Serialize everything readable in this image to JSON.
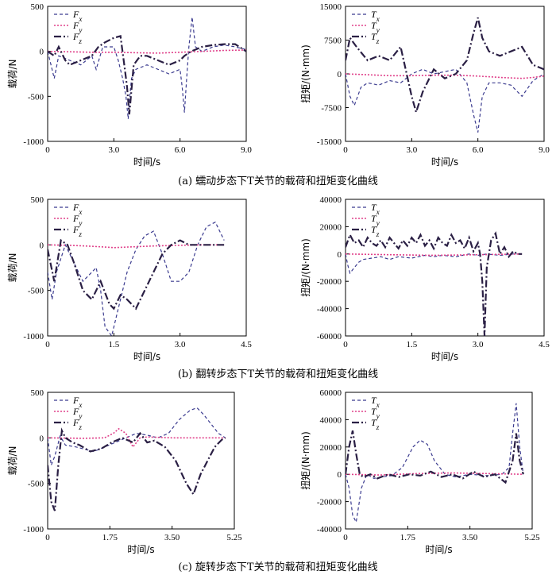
{
  "colors": {
    "x": "#3b3b8f",
    "y": "#e0408a",
    "z": "#2a1f44"
  },
  "captions": [
    "(a)  蠕动步态下T关节的载荷和扭矩变化曲线",
    "(b)  翻转步态下T关节的载荷和扭矩变化曲线",
    "(c)  旋转步态下T关节的载荷和扭矩变化曲线"
  ],
  "chart_data": [
    {
      "type": "line",
      "id": "a-load",
      "xlabel": "时间/s",
      "ylabel": "载荷/N",
      "xlim": [
        0,
        9
      ],
      "ylim": [
        -1000,
        500
      ],
      "xticks": [
        "0",
        "3.0",
        "6.0",
        "9.0"
      ],
      "yticks": [
        "500",
        "0",
        "-500",
        "-1000"
      ],
      "legend": [
        "Fx",
        "Fy",
        "Fz"
      ],
      "series": [
        {
          "name": "Fx",
          "x": [
            0,
            0.15,
            0.3,
            0.5,
            1,
            1.5,
            2,
            2.2,
            2.5,
            3,
            3.2,
            3.4,
            3.55,
            3.65,
            3.7,
            3.8,
            4.0,
            4.5,
            5,
            5.5,
            6.0,
            6.1,
            6.2,
            6.3,
            6.4,
            6.55,
            6.7,
            7,
            7.5,
            8,
            8.5,
            9
          ],
          "y": [
            0,
            -150,
            -300,
            -50,
            -100,
            -150,
            -50,
            -200,
            50,
            50,
            -100,
            -300,
            -500,
            -750,
            -550,
            -300,
            -200,
            -150,
            -200,
            -250,
            -200,
            -400,
            -680,
            -300,
            50,
            380,
            50,
            0,
            50,
            70,
            50,
            20
          ]
        },
        {
          "name": "Fy",
          "x": [
            0,
            1,
            2,
            3,
            4,
            5,
            6,
            7,
            8,
            9
          ],
          "y": [
            0,
            -5,
            -10,
            -10,
            -15,
            -20,
            -10,
            0,
            10,
            15
          ]
        },
        {
          "name": "Fz",
          "x": [
            0,
            0.3,
            0.5,
            0.8,
            1,
            1.5,
            2,
            2.3,
            2.6,
            3,
            3.3,
            3.5,
            3.6,
            3.7,
            3.9,
            4.2,
            4.5,
            5,
            5.5,
            6,
            6.2,
            6.5,
            7,
            7.5,
            8,
            8.5,
            9
          ],
          "y": [
            0,
            -50,
            50,
            -100,
            -150,
            -100,
            -50,
            50,
            100,
            150,
            170,
            -200,
            -400,
            -700,
            -150,
            -50,
            -50,
            -100,
            -150,
            -100,
            -50,
            0,
            50,
            70,
            80,
            80,
            0
          ]
        }
      ]
    },
    {
      "type": "line",
      "id": "a-torque",
      "xlabel": "时间/s",
      "ylabel": "扭矩/(N·mm)",
      "xlim": [
        0,
        9
      ],
      "ylim": [
        -15000,
        15000
      ],
      "xticks": [
        "0",
        "3.0",
        "6.0",
        "9.0"
      ],
      "yticks": [
        "15000",
        "7500",
        "0",
        "-7500",
        "-15000"
      ],
      "legend": [
        "Tx",
        "Ty",
        "Tz"
      ],
      "series": [
        {
          "name": "Tx",
          "x": [
            0,
            0.2,
            0.4,
            0.7,
            1,
            1.5,
            2,
            2.5,
            3,
            3.5,
            4,
            4.5,
            5,
            5.5,
            5.8,
            6.0,
            6.2,
            6.5,
            7,
            7.5,
            8,
            8.5,
            9
          ],
          "y": [
            0,
            -5000,
            -7000,
            -3000,
            -2000,
            -2500,
            -1500,
            -2000,
            0,
            1000,
            0,
            500,
            1000,
            -2000,
            -9000,
            -13000,
            -5000,
            -2000,
            -2000,
            -2500,
            -5000,
            -1500,
            0
          ]
        },
        {
          "name": "Ty",
          "x": [
            0,
            1,
            2,
            3,
            4,
            5,
            6,
            7,
            8,
            8.5,
            9
          ],
          "y": [
            0,
            -200,
            -400,
            -400,
            -300,
            -300,
            -500,
            -800,
            -1000,
            -800,
            -500
          ]
        },
        {
          "name": "Tz",
          "x": [
            0,
            0.2,
            0.5,
            1,
            1.5,
            2,
            2.5,
            3,
            3.2,
            3.5,
            4,
            4.5,
            5,
            5.5,
            5.8,
            6.0,
            6.2,
            6.5,
            7,
            7.5,
            8,
            8.5,
            9
          ],
          "y": [
            3000,
            8000,
            6000,
            3000,
            4000,
            3000,
            6000,
            -5000,
            -8500,
            -4000,
            1000,
            -1000,
            0,
            3000,
            9000,
            12500,
            8000,
            5000,
            4000,
            5000,
            6000,
            2000,
            1000
          ]
        }
      ]
    },
    {
      "type": "line",
      "id": "b-load",
      "xlabel": "时间/s",
      "ylabel": "载荷/N",
      "xlim": [
        0,
        4.5
      ],
      "ylim": [
        -1000,
        500
      ],
      "xticks": [
        "0",
        "1.5",
        "3.0",
        "4.5"
      ],
      "yticks": [
        "500",
        "0",
        "-500",
        "-1000"
      ],
      "legend": [
        "Fx",
        "Fy",
        "Fz"
      ],
      "series": [
        {
          "name": "Fx",
          "x": [
            0,
            0.1,
            0.2,
            0.4,
            0.6,
            0.8,
            1.0,
            1.1,
            1.2,
            1.3,
            1.45,
            1.6,
            1.8,
            2.0,
            2.2,
            2.4,
            2.6,
            2.8,
            3.0,
            3.2,
            3.4,
            3.6,
            3.8,
            4.0
          ],
          "y": [
            -300,
            -600,
            -300,
            0,
            -200,
            -400,
            -300,
            -250,
            -500,
            -900,
            -1000,
            -700,
            -300,
            -50,
            100,
            150,
            -100,
            -400,
            -400,
            -300,
            0,
            200,
            250,
            50
          ]
        },
        {
          "name": "Fy",
          "x": [
            0,
            0.5,
            1,
            1.5,
            2,
            2.5,
            3,
            3.5,
            4
          ],
          "y": [
            0,
            -5,
            -15,
            -30,
            -20,
            -10,
            -5,
            0,
            0
          ]
        },
        {
          "name": "Fz",
          "x": [
            0,
            0.15,
            0.3,
            0.45,
            0.6,
            0.8,
            1.0,
            1.2,
            1.4,
            1.5,
            1.65,
            1.8,
            2.0,
            2.2,
            2.4,
            2.6,
            2.8,
            3.0,
            3.2,
            3.5,
            3.8,
            4.0
          ],
          "y": [
            -50,
            -400,
            50,
            0,
            -200,
            -500,
            -600,
            -400,
            -650,
            -700,
            -550,
            -600,
            -700,
            -500,
            -300,
            -100,
            0,
            50,
            0,
            0,
            0,
            0
          ]
        }
      ]
    },
    {
      "type": "line",
      "id": "b-torque",
      "xlabel": "时间/s",
      "ylabel": "扭矩/(N·mm)",
      "xlim": [
        0,
        4.5
      ],
      "ylim": [
        -60000,
        40000
      ],
      "xticks": [
        "0",
        "1.5",
        "3.0",
        "4.5"
      ],
      "yticks": [
        "40000",
        "20000",
        "0",
        "-20000",
        "-40000",
        "-60000"
      ],
      "legend": [
        "Tx",
        "Ty",
        "Tz"
      ],
      "series": [
        {
          "name": "Tx",
          "x": [
            0,
            0.05,
            0.1,
            0.2,
            0.3,
            0.4,
            0.6,
            0.8,
            1.0,
            1.2,
            1.5,
            1.8,
            2.0,
            2.2,
            2.5,
            2.8,
            3.0,
            3.2,
            3.5,
            3.8,
            4.0
          ],
          "y": [
            0,
            -8000,
            -14000,
            -10000,
            -6000,
            -4000,
            -3000,
            -2000,
            -4000,
            -2000,
            -3000,
            -1000,
            -2000,
            -1000,
            -2000,
            0,
            -1000,
            0,
            -1000,
            0,
            0
          ]
        },
        {
          "name": "Ty",
          "x": [
            0,
            1,
            2,
            3,
            4
          ],
          "y": [
            0,
            -500,
            -1000,
            -500,
            0
          ]
        },
        {
          "name": "Tz",
          "x": [
            0,
            0.1,
            0.2,
            0.3,
            0.4,
            0.5,
            0.6,
            0.7,
            0.8,
            0.9,
            1.0,
            1.1,
            1.2,
            1.3,
            1.4,
            1.5,
            1.6,
            1.7,
            1.8,
            1.9,
            2.0,
            2.1,
            2.2,
            2.3,
            2.4,
            2.5,
            2.6,
            2.7,
            2.8,
            2.9,
            3.0,
            3.05,
            3.1,
            3.15,
            3.2,
            3.3,
            3.4,
            3.5,
            3.6,
            3.7,
            3.8,
            3.9,
            4.0
          ],
          "y": [
            5000,
            14000,
            8000,
            10000,
            5000,
            12000,
            8000,
            6000,
            10000,
            5000,
            12000,
            8000,
            4000,
            10000,
            6000,
            12000,
            8000,
            14000,
            6000,
            10000,
            4000,
            12000,
            8000,
            6000,
            14000,
            8000,
            10000,
            4000,
            12000,
            2000,
            8000,
            0,
            -20000,
            -60000,
            -10000,
            10000,
            15000,
            0,
            5000,
            -2000,
            2000,
            0,
            0
          ]
        }
      ]
    },
    {
      "type": "line",
      "id": "c-load",
      "xlabel": "时间/s",
      "ylabel": "载荷/N",
      "xlim": [
        0,
        5.25
      ],
      "ylim": [
        -1000,
        500
      ],
      "xticks": [
        "0",
        "1.75",
        "3.50",
        "5.25"
      ],
      "yticks": [
        "500",
        "0",
        "-500",
        "-1000"
      ],
      "legend": [
        "Fx",
        "Fy",
        "Fz"
      ],
      "series": [
        {
          "name": "Fx",
          "x": [
            0,
            0.1,
            0.2,
            0.35,
            0.5,
            0.8,
            1.0,
            1.3,
            1.6,
            1.9,
            2.2,
            2.5,
            2.8,
            3.1,
            3.4,
            3.7,
            4.0,
            4.2,
            4.4,
            4.6,
            4.8,
            5.0
          ],
          "y": [
            0,
            -300,
            -200,
            20,
            -80,
            -100,
            -120,
            -150,
            -100,
            -50,
            0,
            50,
            30,
            0,
            50,
            200,
            300,
            330,
            250,
            150,
            50,
            0
          ]
        },
        {
          "name": "Fy",
          "x": [
            0,
            1,
            1.6,
            1.85,
            2.0,
            2.2,
            2.4,
            2.6,
            2.8,
            3.5,
            4.5,
            5.0
          ],
          "y": [
            0,
            -5,
            0,
            50,
            100,
            50,
            -100,
            0,
            10,
            0,
            0,
            0
          ]
        },
        {
          "name": "Fz",
          "x": [
            0,
            0.1,
            0.2,
            0.3,
            0.4,
            0.5,
            0.7,
            0.9,
            1.2,
            1.5,
            1.8,
            2.1,
            2.4,
            2.6,
            2.8,
            3.0,
            3.3,
            3.6,
            3.9,
            4.1,
            4.3,
            4.5,
            4.7,
            4.9,
            5.0
          ],
          "y": [
            -300,
            -700,
            -800,
            -300,
            80,
            0,
            -50,
            -80,
            -150,
            -120,
            -50,
            0,
            -50,
            50,
            -50,
            -30,
            -100,
            -250,
            -500,
            -620,
            -400,
            -250,
            -100,
            -20,
            0
          ]
        }
      ]
    },
    {
      "type": "line",
      "id": "c-torque",
      "xlabel": "时间/s",
      "ylabel": "扭矩/(N·mm)",
      "xlim": [
        0,
        5.25
      ],
      "ylim": [
        -40000,
        60000
      ],
      "xticks": [
        "0",
        "1.75",
        "3.50",
        "5.25"
      ],
      "yticks": [
        "60000",
        "40000",
        "20000",
        "0",
        "-20000",
        "-40000"
      ],
      "legend": [
        "Tx",
        "Ty",
        "Tz"
      ],
      "series": [
        {
          "name": "Tx",
          "x": [
            0,
            0.1,
            0.2,
            0.3,
            0.45,
            0.6,
            0.8,
            1.0,
            1.3,
            1.6,
            1.9,
            2.1,
            2.3,
            2.5,
            2.8,
            3.1,
            3.5,
            4.0,
            4.4,
            4.6,
            4.7,
            4.8,
            4.9,
            5.0
          ],
          "y": [
            0,
            -10000,
            -30000,
            -35000,
            -10000,
            0,
            -3000,
            -2000,
            -1000,
            5000,
            20000,
            25000,
            22000,
            10000,
            0,
            -2000,
            0,
            -1000,
            0,
            5000,
            30000,
            52000,
            20000,
            0
          ]
        },
        {
          "name": "Ty",
          "x": [
            0,
            1,
            2,
            3,
            4,
            5
          ],
          "y": [
            0,
            -500,
            500,
            1000,
            500,
            0
          ]
        },
        {
          "name": "Tz",
          "x": [
            0,
            0.1,
            0.2,
            0.3,
            0.4,
            0.5,
            0.7,
            0.9,
            1.2,
            1.5,
            1.8,
            2.1,
            2.4,
            2.7,
            3.0,
            3.3,
            3.6,
            3.9,
            4.2,
            4.5,
            4.7,
            4.8,
            4.9,
            5.0
          ],
          "y": [
            0,
            20000,
            32000,
            15000,
            0,
            -2000,
            0,
            -3000,
            0,
            -2000,
            0,
            -1000,
            2000,
            -2000,
            0,
            -3000,
            2000,
            -2000,
            0,
            -6000,
            10000,
            30000,
            10000,
            0
          ]
        }
      ]
    }
  ]
}
